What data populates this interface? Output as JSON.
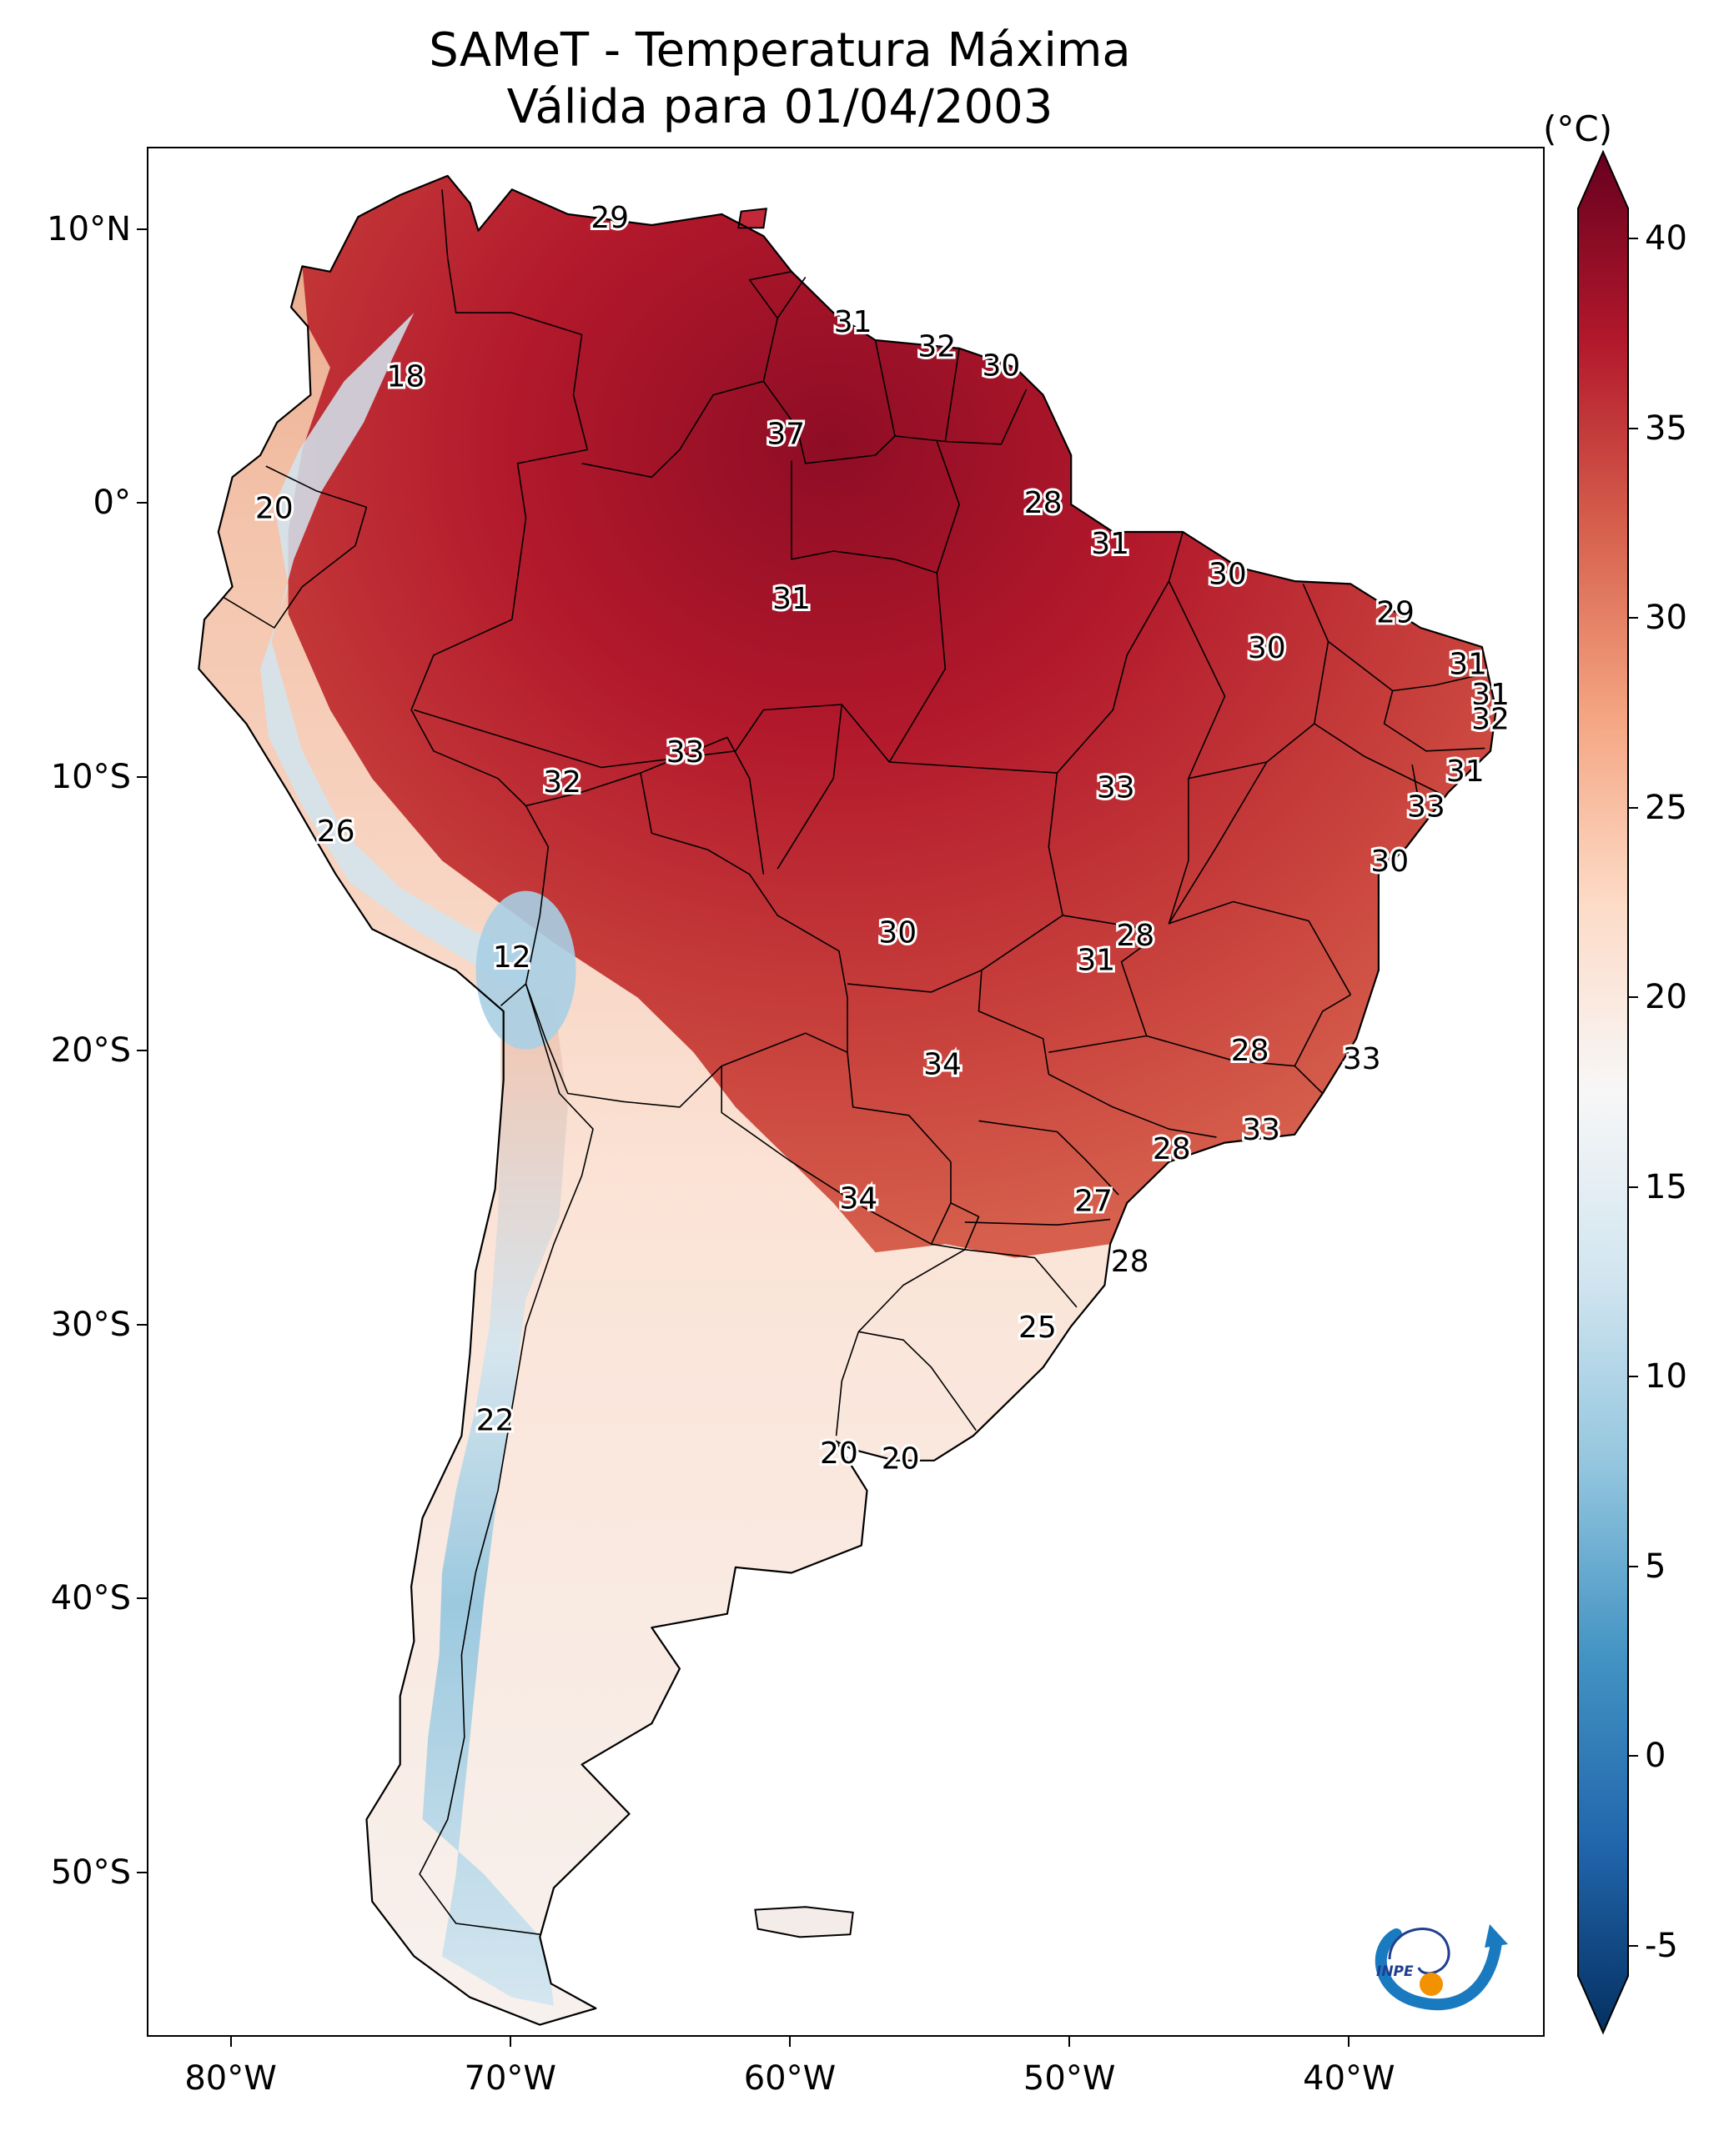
{
  "title": {
    "line1": "SAMeT - Temperatura Máxima",
    "line2": "Válida para 01/04/2003"
  },
  "axes": {
    "lat_labels": [
      {
        "lat": 10,
        "label": "10°N"
      },
      {
        "lat": 0,
        "label": "0°"
      },
      {
        "lat": -10,
        "label": "10°S"
      },
      {
        "lat": -20,
        "label": "20°S"
      },
      {
        "lat": -30,
        "label": "30°S"
      },
      {
        "lat": -40,
        "label": "40°S"
      },
      {
        "lat": -50,
        "label": "50°S"
      }
    ],
    "lon_labels": [
      {
        "lon": -80,
        "label": "80°W"
      },
      {
        "lon": -70,
        "label": "70°W"
      },
      {
        "lon": -60,
        "label": "60°W"
      },
      {
        "lon": -50,
        "label": "50°W"
      },
      {
        "lon": -40,
        "label": "40°W"
      }
    ],
    "lon_range": [
      -83,
      -33
    ],
    "lat_range": [
      -56,
      13
    ]
  },
  "colorbar": {
    "unit": "(°C)",
    "min": -7,
    "max": 42,
    "ticks": [
      {
        "value": 40,
        "label": "40"
      },
      {
        "value": 35,
        "label": "35"
      },
      {
        "value": 30,
        "label": "30"
      },
      {
        "value": 25,
        "label": "25"
      },
      {
        "value": 20,
        "label": "20"
      },
      {
        "value": 15,
        "label": "15"
      },
      {
        "value": 10,
        "label": "10"
      },
      {
        "value": 5,
        "label": "5"
      },
      {
        "value": 0,
        "label": "0"
      },
      {
        "value": -5,
        "label": "-5"
      }
    ],
    "colormap": "RdBu_r",
    "colors": [
      "#053061",
      "#2166ac",
      "#4393c3",
      "#92c5de",
      "#d1e5f0",
      "#f7f7f7",
      "#fddbc7",
      "#f4a582",
      "#d6604d",
      "#b2182b",
      "#67001f"
    ]
  },
  "temperature_labels": [
    {
      "lon": -66.5,
      "lat": 10.5,
      "value": "29"
    },
    {
      "lon": -73.8,
      "lat": 4.7,
      "value": "18"
    },
    {
      "lon": -57.8,
      "lat": 6.7,
      "value": "31"
    },
    {
      "lon": -54.8,
      "lat": 5.8,
      "value": "32"
    },
    {
      "lon": -52.5,
      "lat": 5.1,
      "value": "30"
    },
    {
      "lon": -60.2,
      "lat": 2.6,
      "value": "37"
    },
    {
      "lon": -78.5,
      "lat": -0.1,
      "value": "20"
    },
    {
      "lon": -51.0,
      "lat": 0.1,
      "value": "28"
    },
    {
      "lon": -48.6,
      "lat": -1.4,
      "value": "31"
    },
    {
      "lon": -44.4,
      "lat": -2.5,
      "value": "30"
    },
    {
      "lon": -60.0,
      "lat": -3.4,
      "value": "31"
    },
    {
      "lon": -38.4,
      "lat": -3.9,
      "value": "29"
    },
    {
      "lon": -43.0,
      "lat": -5.2,
      "value": "30"
    },
    {
      "lon": -35.8,
      "lat": -5.8,
      "value": "31"
    },
    {
      "lon": -35.0,
      "lat": -6.9,
      "value": "31"
    },
    {
      "lon": -35.0,
      "lat": -7.8,
      "value": "32"
    },
    {
      "lon": -63.8,
      "lat": -9.0,
      "value": "33"
    },
    {
      "lon": -35.9,
      "lat": -9.7,
      "value": "31"
    },
    {
      "lon": -68.2,
      "lat": -10.1,
      "value": "32"
    },
    {
      "lon": -48.4,
      "lat": -10.3,
      "value": "33"
    },
    {
      "lon": -37.3,
      "lat": -11.0,
      "value": "33"
    },
    {
      "lon": -76.3,
      "lat": -11.9,
      "value": "26"
    },
    {
      "lon": -38.6,
      "lat": -13.0,
      "value": "30"
    },
    {
      "lon": -56.2,
      "lat": -15.6,
      "value": "30"
    },
    {
      "lon": -47.7,
      "lat": -15.7,
      "value": "28"
    },
    {
      "lon": -49.1,
      "lat": -16.6,
      "value": "31"
    },
    {
      "lon": -70.0,
      "lat": -16.5,
      "value": "12"
    },
    {
      "lon": -43.6,
      "lat": -19.9,
      "value": "28"
    },
    {
      "lon": -39.6,
      "lat": -20.2,
      "value": "33"
    },
    {
      "lon": -54.6,
      "lat": -20.4,
      "value": "34"
    },
    {
      "lon": -43.2,
      "lat": -22.8,
      "value": "33"
    },
    {
      "lon": -46.4,
      "lat": -23.5,
      "value": "28"
    },
    {
      "lon": -57.6,
      "lat": -25.3,
      "value": "34"
    },
    {
      "lon": -49.2,
      "lat": -25.4,
      "value": "27"
    },
    {
      "lon": -47.9,
      "lat": -27.6,
      "value": "28"
    },
    {
      "lon": -51.2,
      "lat": -30.0,
      "value": "25"
    },
    {
      "lon": -70.6,
      "lat": -33.4,
      "value": "22"
    },
    {
      "lon": -58.3,
      "lat": -34.6,
      "value": "20"
    },
    {
      "lon": -56.1,
      "lat": -34.8,
      "value": "20"
    }
  ],
  "logo": {
    "text": "INPE"
  }
}
